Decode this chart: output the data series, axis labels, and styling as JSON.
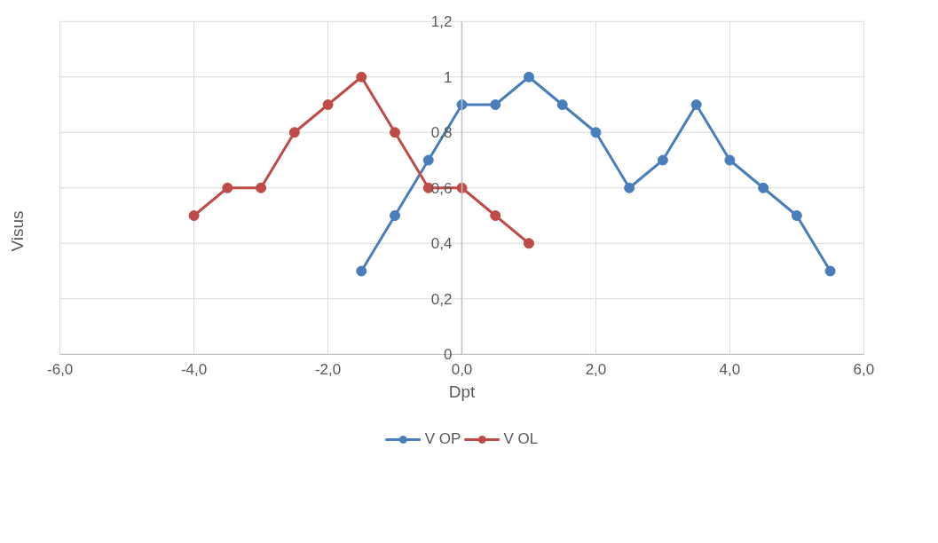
{
  "chart_data": {
    "type": "line",
    "xlabel": "Dpt",
    "ylabel": "Visus",
    "xlim": [
      -6,
      6
    ],
    "ylim": [
      0,
      1.2
    ],
    "xticks": [
      {
        "value": -6,
        "label": "-6,0"
      },
      {
        "value": -4,
        "label": "-4,0"
      },
      {
        "value": -2,
        "label": "-2,0"
      },
      {
        "value": 0,
        "label": "0,0"
      },
      {
        "value": 2,
        "label": "2,0"
      },
      {
        "value": 4,
        "label": "4,0"
      },
      {
        "value": 6,
        "label": "6,0"
      }
    ],
    "yticks": [
      0,
      {
        "value": 0.2,
        "label": "0,2"
      },
      {
        "value": 0.4,
        "label": "0,4"
      },
      {
        "value": 0.6,
        "label": "0,6"
      },
      {
        "value": 0.8,
        "label": "0,8"
      },
      1,
      {
        "value": 1.2,
        "label": "1,2"
      }
    ],
    "grid": true,
    "legend": "bottom",
    "marker": "circle",
    "series": [
      {
        "name": "V OP",
        "color": "#4a7ebb",
        "x": [
          -1.5,
          -1,
          -0.5,
          0,
          0.5,
          1,
          1.5,
          2,
          2.5,
          3,
          3.5,
          4,
          4.5,
          5,
          5.5
        ],
        "values": [
          0.3,
          0.5,
          0.7,
          0.9,
          0.9,
          1,
          0.9,
          0.8,
          0.6,
          0.7,
          0.9,
          0.7,
          0.6,
          0.5,
          0.3
        ]
      },
      {
        "name": "V OL",
        "color": "#be4b48",
        "x": [
          -4,
          -3.5,
          -3,
          -2.5,
          -2,
          -1.5,
          -1,
          -0.5,
          0,
          0.5,
          1
        ],
        "values": [
          0.5,
          0.6,
          0.6,
          0.8,
          0.9,
          1,
          0.8,
          0.6,
          0.6,
          0.5,
          0.4
        ]
      }
    ]
  }
}
